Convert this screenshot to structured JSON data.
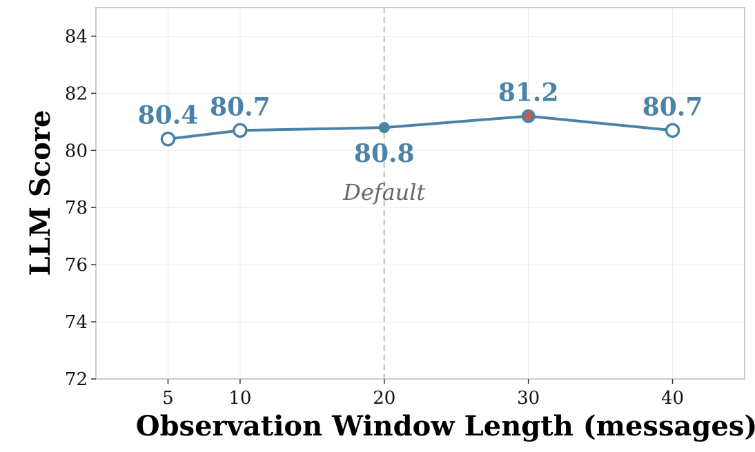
{
  "chart_data": {
    "type": "line",
    "x": [
      5,
      10,
      20,
      30,
      40
    ],
    "series": [
      {
        "values": [
          80.4,
          80.7,
          80.8,
          81.2,
          80.7
        ]
      }
    ],
    "data_labels": [
      "80.4",
      "80.7",
      "80.8",
      "81.2",
      "80.7"
    ],
    "xlabel": "Observation Window Length (messages)",
    "ylabel": "LLM Score",
    "xticks": [
      5,
      10,
      20,
      30,
      40
    ],
    "yticks": [
      72,
      74,
      76,
      78,
      80,
      82,
      84
    ],
    "xlim": [
      0,
      45
    ],
    "ylim": [
      72,
      85
    ],
    "grid": true,
    "default_x": 20,
    "annotation": "Default",
    "best_x": 30,
    "colors": {
      "line": "#4a83a6",
      "best_marker": "#d9573b",
      "default_line": "#c8c8c8",
      "grid": "#ebebeb",
      "frame": "#cccccc"
    }
  }
}
